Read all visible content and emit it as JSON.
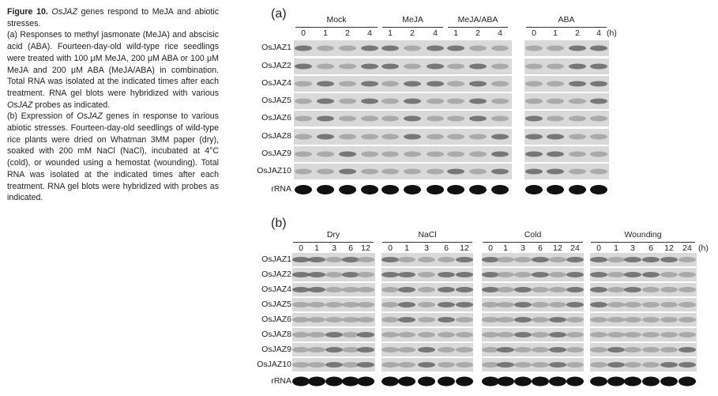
{
  "caption": {
    "figure_label": "Figure 10.",
    "title_italic": "OsJAZ",
    "title_rest": " genes respond to MeJA and abiotic stresses.",
    "part_a": "(a) Responses to methyl jasmonate (MeJA) and abscisic acid (ABA). Fourteen-day-old wild-type rice seedlings were treated with 100 μM MeJA, 200 μM ABA or 100 μM MeJA and 200 μM ABA (MeJA/ABA) in combination. Total RNA was isolated at the indicated times after each treatment. RNA gel blots were hybridized with various ",
    "part_a_italic": "OsJAZ",
    "part_a_end": " probes as indicated.",
    "part_b_start": "(b) Expression of ",
    "part_b_italic": "OsJAZ",
    "part_b": " genes in response to various abiotic stresses. Fourteen-day-old seedlings of wild-type rice plants were dried on Whatman 3MM paper (dry), soaked with 200 mM NaCl (NaCl), incubated at 4°C (cold), or wounded using a hemostat (wounding). Total RNA was isolated at the indicated times after each treatment. RNA gel blots were hybridized with probes as indicated."
  },
  "panel_a": {
    "letter": "(a)",
    "unit": "(h)",
    "groups": [
      {
        "name": "Mock",
        "times": [
          "0",
          "1",
          "2",
          "4"
        ]
      },
      {
        "name": "MeJA",
        "times": [
          "1",
          "2",
          "4"
        ]
      },
      {
        "name": "MeJA/ABA",
        "times": [
          "1",
          "2",
          "4"
        ]
      },
      {
        "name": "ABA",
        "times": [
          "0",
          "1",
          "2",
          "4"
        ]
      }
    ],
    "rows": [
      "OsJAZ1",
      "OsJAZ2",
      "OsJAZ4",
      "OsJAZ5",
      "OsJAZ6",
      "OsJAZ8",
      "OsJAZ9",
      "OsJAZ10",
      "rRNA"
    ]
  },
  "panel_b": {
    "letter": "(b)",
    "unit": "(h)",
    "groups": [
      {
        "name": "Dry",
        "times": [
          "0",
          "1",
          "3",
          "6",
          "12"
        ]
      },
      {
        "name": "NaCl",
        "times": [
          "0",
          "1",
          "3",
          "6",
          "12"
        ]
      },
      {
        "name": "Cold",
        "times": [
          "0",
          "1",
          "3",
          "6",
          "12",
          "24"
        ]
      },
      {
        "name": "Wounding",
        "times": [
          "0",
          "1",
          "3",
          "6",
          "12",
          "24"
        ]
      }
    ],
    "rows": [
      "OsJAZ1",
      "OsJAZ2",
      "OsJAZ4",
      "OsJAZ5",
      "OsJAZ6",
      "OsJAZ8",
      "OsJAZ9",
      "OsJAZ10",
      "rRNA"
    ]
  }
}
